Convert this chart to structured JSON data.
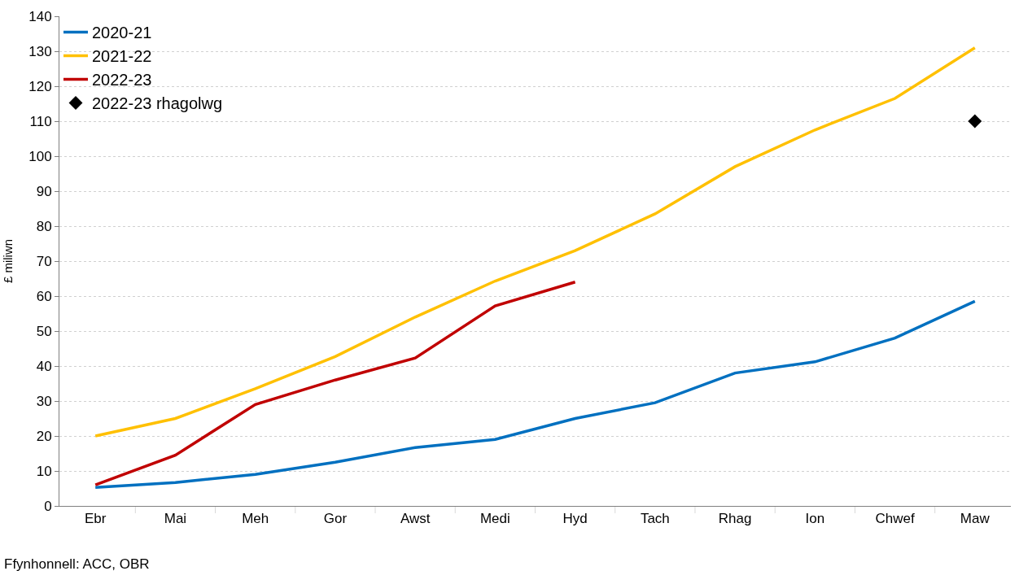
{
  "chart_data": {
    "type": "line",
    "ylabel": "£ miliwn",
    "categories": [
      "Ebr",
      "Mai",
      "Meh",
      "Gor",
      "Awst",
      "Medi",
      "Hyd",
      "Tach",
      "Rhag",
      "Ion",
      "Chwef",
      "Maw"
    ],
    "series": [
      {
        "name": "2020-21",
        "color": "#0070c0",
        "values": [
          5.3,
          6.7,
          9,
          12.5,
          16.7,
          19,
          25,
          29.5,
          38,
          41.2,
          48,
          58.5
        ]
      },
      {
        "name": "2021-22",
        "color": "#ffc000",
        "values": [
          20,
          25,
          33.5,
          42.7,
          54,
          64.3,
          73,
          83.5,
          97,
          107.5,
          116.5,
          131
        ]
      },
      {
        "name": "2022-23",
        "color": "#c00000",
        "values": [
          6,
          14.5,
          29,
          36,
          42.3,
          57.2,
          64,
          null,
          null,
          null,
          null,
          null
        ]
      },
      {
        "name": "2022-23 rhagolwg",
        "type": "scatter",
        "marker": "diamond",
        "color": "#000000",
        "values": [
          null,
          null,
          null,
          null,
          null,
          null,
          null,
          null,
          null,
          null,
          null,
          110
        ]
      }
    ],
    "ylim": [
      0,
      140
    ],
    "yticks": [
      0,
      10,
      20,
      30,
      40,
      50,
      60,
      70,
      80,
      90,
      100,
      110,
      120,
      130,
      140
    ],
    "grid": "y",
    "legend": "top left",
    "marker": "none",
    "line_style": "solid",
    "annotations": [
      "Ffynhonnell: ACC, OBR"
    ]
  }
}
